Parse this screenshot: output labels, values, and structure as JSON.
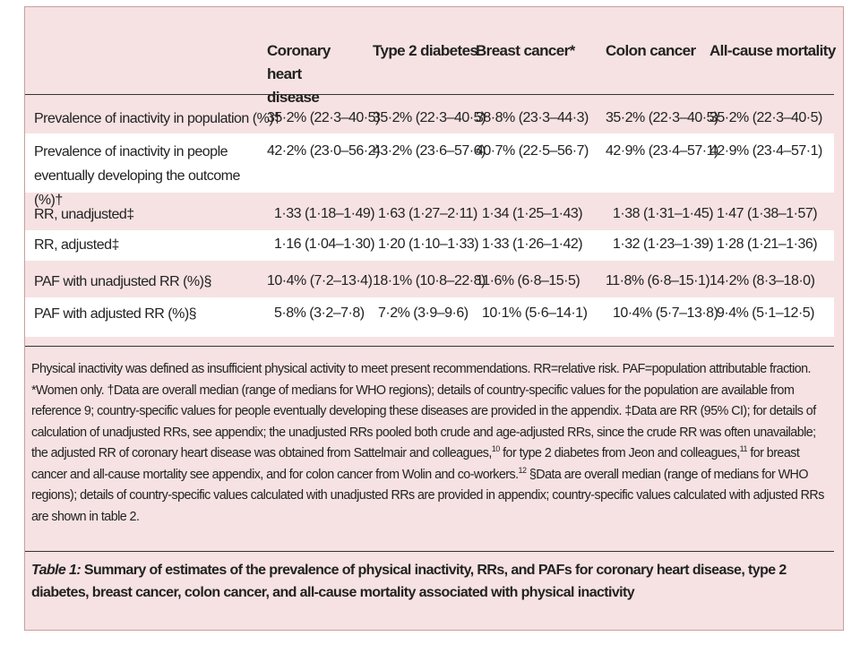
{
  "table": {
    "columns": [
      "Coronary heart disease",
      "Type 2 diabetes",
      "Breast cancer*",
      "Colon cancer",
      "All-cause mortality"
    ],
    "rows": [
      {
        "label": "Prevalence of inactivity in population (%)†",
        "cells": [
          "35·2% (22·3–40·5)",
          "35·2% (22·3–40·5)",
          "38·8% (23·3–44·3)",
          "35·2% (22·3–40·5)",
          "35·2% (22·3–40·5)"
        ]
      },
      {
        "label": "Prevalence of inactivity in people eventually developing the outcome (%)†",
        "cells": [
          "42·2% (23·0–56·2)",
          "43·2% (23·6–57·6)",
          "40·7% (22·5–56·7)",
          "42·9% (23·4–57·1)",
          "42·9% (23·4–57·1)"
        ]
      },
      {
        "label": "RR, unadjusted‡",
        "cells": [
          "1·33 (1·18–1·49)",
          "1·63 (1·27–2·11)",
          "1·34 (1·25–1·43)",
          "1·38 (1·31–1·45)",
          "1·47 (1·38–1·57)"
        ]
      },
      {
        "label": "RR, adjusted‡",
        "cells": [
          "1·16 (1·04–1·30)",
          "1·20 (1·10–1·33)",
          "1·33 (1·26–1·42)",
          "1·32 (1·23–1·39)",
          "1·28 (1·21–1·36)"
        ]
      },
      {
        "label": "PAF with unadjusted RR (%)§",
        "cells": [
          "10·4% (7·2–13·4)",
          "18·1% (10·8–22·8)",
          "11·6% (6·8–15·5)",
          "11·8% (6·8–15·1)",
          "14·2% (8·3–18·0)"
        ]
      },
      {
        "label": "PAF with adjusted RR (%)§",
        "cells": [
          "5·8% (3·2–7·8)",
          "7·2% (3·9–9·6)",
          "10·1% (5·6–14·1)",
          "10·4% (5·7–13·8)",
          "9·4% (5·1–12·5)"
        ]
      }
    ]
  },
  "footnote": {
    "part1": "Physical inactivity was defined as insufficient physical activity to meet present recommendations. RR=relative risk. PAF=population attributable fraction. *Women only. †Data are overall median (range of medians for WHO regions); details of country-specific values for the population are available from reference 9; country-specific values for people eventually developing these diseases are provided in the appendix. ‡Data are RR (95% CI); for details of calculation of unadjusted RRs, see appendix; the unadjusted RRs pooled both crude and age-adjusted RRs, since the crude RR was often unavailable; the adjusted RR of coronary heart disease was obtained from Sattelmair and colleagues,",
    "ref1": "10",
    "part2": " for type 2 diabetes from Jeon and colleagues,",
    "ref2": "11",
    "part3": " for breast cancer and all-cause mortality see appendix, and for colon cancer from Wolin and co-workers.",
    "ref3": "12",
    "part4": " §Data are overall median (range of medians for WHO regions); details of country-specific values calculated with unadjusted RRs are provided in appendix; country-specific values calculated with adjusted RRs are shown in table 2."
  },
  "caption": {
    "label": "Table 1:",
    "text": " Summary of estimates of the prevalence of physical inactivity, RRs, and PAFs for coronary heart disease, type 2 diabetes, breast cancer, colon cancer, and all-cause mortality associated with physical inactivity"
  }
}
